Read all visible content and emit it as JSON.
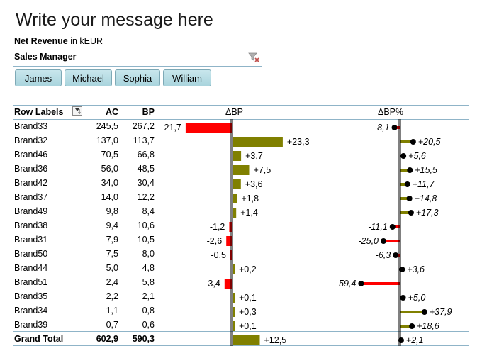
{
  "title": "Write your message here",
  "subtitle": {
    "measure": "Net Revenue",
    "unit": "in kEUR"
  },
  "slicer": {
    "header": "Sales Manager",
    "items": [
      "James",
      "Michael",
      "Sophia",
      "William"
    ]
  },
  "table": {
    "row_labels_header": "Row Labels",
    "ac_header": "AC",
    "bp_header": "BP",
    "delta_header": "ΔBP",
    "delta_pct_header": "ΔBP%",
    "total_label": "Grand Total"
  },
  "colors": {
    "positive": "#808000",
    "negative": "#ff0000",
    "dot": "#000000",
    "rule": "#8fb4c8"
  },
  "chart_data": {
    "type": "table",
    "categories": [
      "Brand33",
      "Brand32",
      "Brand46",
      "Brand36",
      "Brand42",
      "Brand37",
      "Brand49",
      "Brand38",
      "Brand31",
      "Brand50",
      "Brand44",
      "Brand51",
      "Brand35",
      "Brand34",
      "Brand39"
    ],
    "series": [
      {
        "name": "AC",
        "values": [
          "245,5",
          "137,0",
          "70,5",
          "56,0",
          "34,0",
          "14,0",
          "9,8",
          "9,4",
          "7,9",
          "7,5",
          "5,0",
          "2,4",
          "2,2",
          "1,1",
          "0,7"
        ]
      },
      {
        "name": "BP",
        "values": [
          "267,2",
          "113,7",
          "66,8",
          "48,5",
          "30,4",
          "12,2",
          "8,4",
          "10,6",
          "10,5",
          "8,0",
          "4,8",
          "5,8",
          "2,1",
          "0,8",
          "0,6"
        ]
      },
      {
        "name": "ΔBP",
        "values": [
          -21.7,
          23.3,
          3.7,
          7.5,
          3.6,
          1.8,
          1.4,
          -1.2,
          -2.6,
          -0.5,
          0.2,
          -3.4,
          0.1,
          0.3,
          0.1
        ],
        "labels": [
          "-21,7",
          "+23,3",
          "+3,7",
          "+7,5",
          "+3,6",
          "+1,8",
          "+1,4",
          "-1,2",
          "-2,6",
          "-0,5",
          "+0,2",
          "-3,4",
          "+0,1",
          "+0,3",
          "+0,1"
        ]
      },
      {
        "name": "ΔBP%",
        "values": [
          -8.1,
          20.5,
          5.6,
          15.5,
          11.7,
          14.8,
          17.3,
          -11.1,
          -25.0,
          -6.3,
          3.6,
          -59.4,
          5.0,
          37.9,
          18.6
        ],
        "labels": [
          "-8,1",
          "+20,5",
          "+5,6",
          "+15,5",
          "+11,7",
          "+14,8",
          "+17,3",
          "-11,1",
          "-25,0",
          "-6,3",
          "+3,6",
          "-59,4",
          "+5,0",
          "+37,9",
          "+18,6"
        ]
      }
    ],
    "total": {
      "ac": "602,9",
      "bp": "590,3",
      "delta": 12.5,
      "delta_label": "+12,5",
      "delta_pct": 2.1,
      "delta_pct_label": "+2,1"
    }
  }
}
